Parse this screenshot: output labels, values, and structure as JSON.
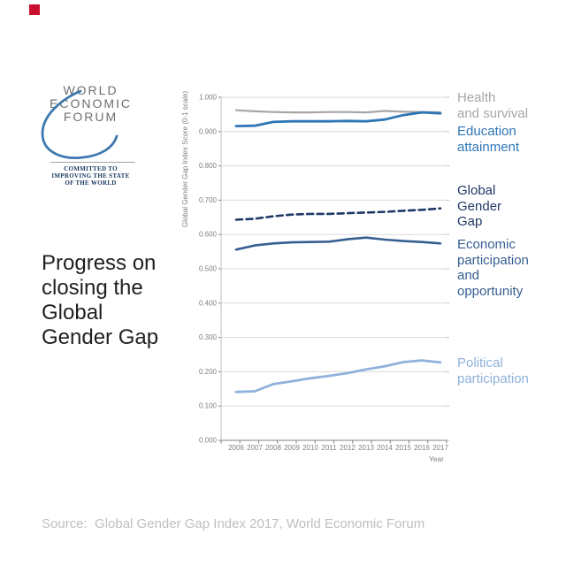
{
  "decorations": {
    "red_square_color": "#C8102E"
  },
  "logo": {
    "name": "WORLD\nECONOMIC\nFORUM",
    "name_color": "#6D6E71",
    "swoosh_color": "#3E79AE",
    "tagline": "COMMITTED TO\nIMPROVING THE STATE\nOF THE WORLD",
    "tagline_color": "#17375E"
  },
  "title": {
    "text": "Progress on\nclosing the\nGlobal\nGender Gap"
  },
  "source": {
    "text": "Source:  Global Gender Gap Index 2017, World Economic Forum"
  },
  "chart_data": {
    "type": "line",
    "title": "",
    "xlabel": "Year",
    "ylabel": "Global Gender Gap Index Score (0-1 scale)",
    "x": [
      "2006",
      "2007",
      "2008",
      "2009",
      "2010",
      "2011",
      "2012",
      "2013",
      "2014",
      "2015",
      "2016",
      "2017"
    ],
    "ylim": [
      0,
      1
    ],
    "ytick_labels": [
      "0.000",
      "0.100",
      "0.200",
      "0.300",
      "0.400",
      "0.500",
      "0.600",
      "0.700",
      "0.800",
      "0.900",
      "1.000"
    ],
    "grid": true,
    "legend_position": "right",
    "axis_colors": {
      "gridline": "#D9D9D9",
      "y_axis": "#BFBFBF",
      "x_axis": "#808080",
      "tick_label": "#7F7F7F",
      "axis_title": "#808080"
    },
    "series": [
      {
        "id": "health",
        "name": "Health and survival",
        "label": "Health\nand survival",
        "color": "#A6A6A6",
        "dash": false,
        "width": 2.2,
        "values": [
          0.962,
          0.959,
          0.957,
          0.956,
          0.956,
          0.957,
          0.957,
          0.956,
          0.96,
          0.958,
          0.957,
          0.956
        ]
      },
      {
        "id": "education",
        "name": "Education attainment",
        "label": "Education\nattainment",
        "color": "#2E75B6",
        "dash": false,
        "width": 2.8,
        "values": [
          0.916,
          0.917,
          0.928,
          0.93,
          0.93,
          0.93,
          0.931,
          0.93,
          0.935,
          0.948,
          0.956,
          0.953
        ]
      },
      {
        "id": "global",
        "name": "Global Gender Gap",
        "label": "Global\nGender\nGap",
        "color": "#1F3864",
        "dash": true,
        "width": 2.6,
        "values": [
          0.643,
          0.646,
          0.653,
          0.658,
          0.66,
          0.66,
          0.662,
          0.664,
          0.666,
          0.669,
          0.672,
          0.676
        ]
      },
      {
        "id": "economic",
        "name": "Economic participation and opportunity",
        "label": "Economic\nparticipation\nand\nopportunity",
        "color": "#365F91",
        "dash": false,
        "width": 2.6,
        "values": [
          0.556,
          0.568,
          0.574,
          0.577,
          0.578,
          0.579,
          0.586,
          0.591,
          0.585,
          0.581,
          0.578,
          0.574
        ]
      },
      {
        "id": "political",
        "name": "Political participation",
        "label": "Political\nparticipation",
        "color": "#8FB2DC",
        "dash": false,
        "width": 2.8,
        "values": [
          0.141,
          0.143,
          0.164,
          0.172,
          0.181,
          0.188,
          0.196,
          0.207,
          0.216,
          0.228,
          0.233,
          0.227
        ]
      }
    ]
  }
}
